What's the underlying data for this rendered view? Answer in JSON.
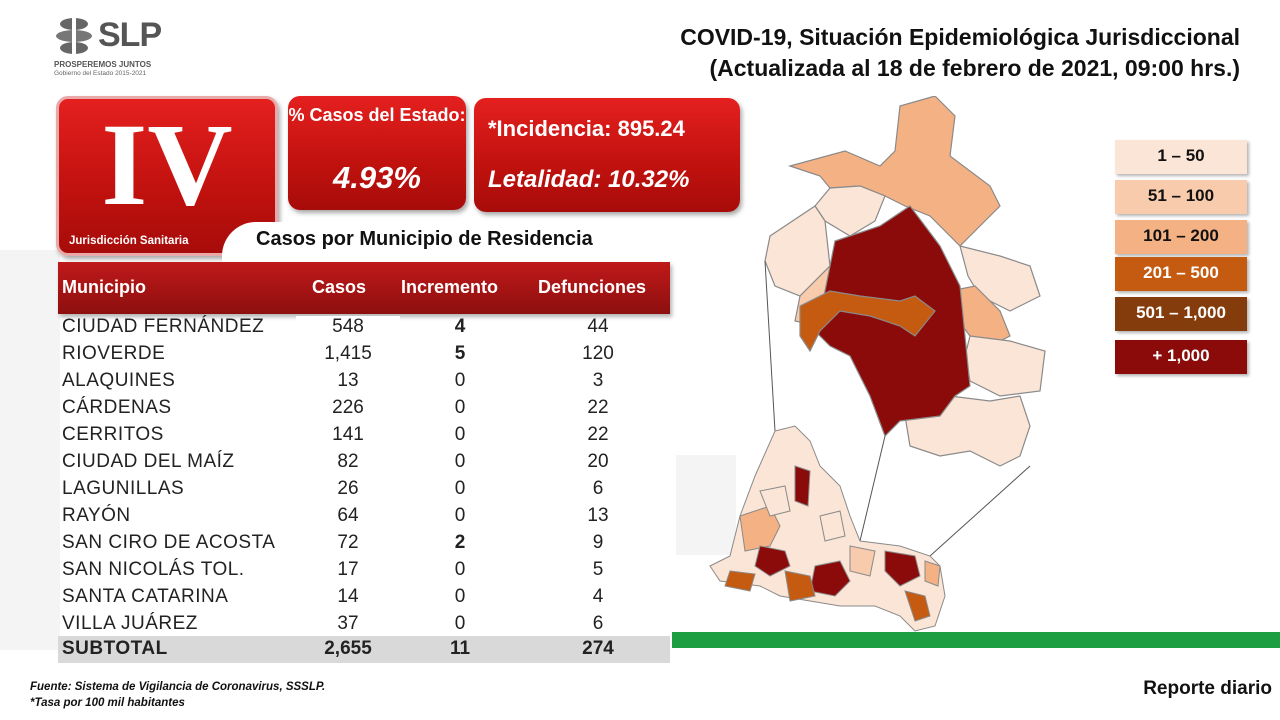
{
  "logo": {
    "wordmark": "SLP",
    "tagline": "PROSPEREMOS JUNTOS",
    "subtitle": "Gobierno del Estado 2015-2021"
  },
  "header": {
    "title_line1": "COVID-19, Situación Epidemiológica Jurisdiccional",
    "title_line2": "(Actualizada al 18 de febrero de 2021, 09:00 hrs.)"
  },
  "jurisdiction": {
    "numeral": "IV",
    "label": "Jurisdicción Sanitaria"
  },
  "stats": {
    "pct_label": "% Casos del Estado:",
    "pct_value": "4.93%",
    "incidence": "*Incidencia: 895.24",
    "lethality": "Letalidad: 10.32%"
  },
  "table": {
    "title": "Casos por Municipio  de Residencia",
    "headers": [
      "Municipio",
      "Casos",
      "Incremento",
      "Defunciones"
    ],
    "rows": [
      {
        "municipio": "CIUDAD FERNÁNDEZ",
        "casos": "548",
        "incremento": "4",
        "defunciones": "44"
      },
      {
        "municipio": "RIOVERDE",
        "casos": "1,415",
        "incremento": "5",
        "defunciones": "120"
      },
      {
        "municipio": "ALAQUINES",
        "casos": "13",
        "incremento": "0",
        "defunciones": "3"
      },
      {
        "municipio": "CÁRDENAS",
        "casos": "226",
        "incremento": "0",
        "defunciones": "22"
      },
      {
        "municipio": "CERRITOS",
        "casos": "141",
        "incremento": "0",
        "defunciones": "22"
      },
      {
        "municipio": "CIUDAD DEL MAÍZ",
        "casos": "82",
        "incremento": "0",
        "defunciones": "20"
      },
      {
        "municipio": "LAGUNILLAS",
        "casos": "26",
        "incremento": "0",
        "defunciones": "6"
      },
      {
        "municipio": "RAYÓN",
        "casos": "64",
        "incremento": "0",
        "defunciones": "13"
      },
      {
        "municipio": "SAN CIRO DE ACOSTA",
        "casos": "72",
        "incremento": "2",
        "defunciones": "9"
      },
      {
        "municipio": "SAN NICOLÁS TOL.",
        "casos": "17",
        "incremento": "0",
        "defunciones": "5"
      },
      {
        "municipio": "SANTA CATARINA",
        "casos": "14",
        "incremento": "0",
        "defunciones": "4"
      },
      {
        "municipio": "VILLA JUÁREZ",
        "casos": "37",
        "incremento": "0",
        "defunciones": "6"
      }
    ],
    "subtotal": {
      "municipio": "SUBTOTAL",
      "casos": "2,655",
      "incremento": "11",
      "defunciones": "274"
    }
  },
  "legend": [
    {
      "label": "1 – 50",
      "color": "#fbe5d6",
      "text_color": "#111111"
    },
    {
      "label": "51 – 100",
      "color": "#f7cbac",
      "text_color": "#111111"
    },
    {
      "label": "101 – 200",
      "color": "#f4b183",
      "text_color": "#111111"
    },
    {
      "label": "201 – 500",
      "color": "#c55a11",
      "text_color": "#ffffff"
    },
    {
      "label": "501 – 1,000",
      "color": "#843c0c",
      "text_color": "#ffffff"
    },
    {
      "label": "+ 1,000",
      "color": "#8b0a0a",
      "text_color": "#ffffff"
    }
  ],
  "footer": {
    "source": "Fuente: Sistema de Vigilancia de Coronavirus, SSSLP.",
    "rate_note": "*Tasa por 100 mil habitantes",
    "report": "Reporte diario"
  },
  "colors": {
    "tile_red": "#c3120f",
    "header_red": "#a81414",
    "green_bar": "#1e9e42"
  }
}
